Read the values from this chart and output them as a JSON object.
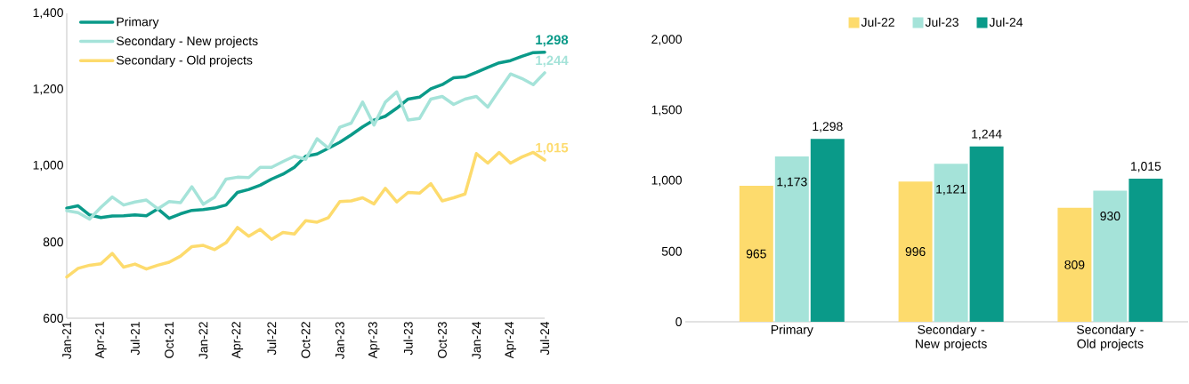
{
  "chart_data": [
    {
      "type": "line",
      "x": [
        "2021-01",
        "2021-02",
        "2021-03",
        "2021-04",
        "2021-05",
        "2021-06",
        "2021-07",
        "2021-08",
        "2021-09",
        "2021-10",
        "2021-11",
        "2021-12",
        "2022-01",
        "2022-02",
        "2022-03",
        "2022-04",
        "2022-05",
        "2022-06",
        "2022-07",
        "2022-08",
        "2022-09",
        "2022-10",
        "2022-11",
        "2022-12",
        "2023-01",
        "2023-02",
        "2023-03",
        "2023-04",
        "2023-05",
        "2023-06",
        "2023-07",
        "2023-08",
        "2023-09",
        "2023-10",
        "2023-11",
        "2023-12",
        "2024-01",
        "2024-02",
        "2024-03",
        "2024-04",
        "2024-05",
        "2024-06",
        "2024-07"
      ],
      "series": [
        {
          "name": "Primary",
          "color": "#0a9a89",
          "values": [
            889,
            895,
            871,
            864,
            868,
            869,
            871,
            869,
            887,
            862,
            874,
            883,
            885,
            889,
            897,
            930,
            938,
            949,
            965,
            978,
            996,
            1025,
            1031,
            1046,
            1062,
            1081,
            1102,
            1120,
            1130,
            1151,
            1175,
            1180,
            1202,
            1213,
            1231,
            1233,
            1245,
            1258,
            1270,
            1276,
            1287,
            1297,
            1298
          ]
        },
        {
          "name": "Secondary - New projects",
          "color": "#a5e3d9",
          "values": [
            882,
            877,
            860,
            891,
            918,
            897,
            905,
            910,
            887,
            906,
            903,
            945,
            899,
            918,
            965,
            970,
            969,
            996,
            996,
            1011,
            1025,
            1017,
            1071,
            1046,
            1101,
            1112,
            1167,
            1107,
            1167,
            1194,
            1120,
            1124,
            1175,
            1182,
            1161,
            1175,
            1182,
            1154,
            1198,
            1241,
            1229,
            1213,
            1244
          ]
        },
        {
          "name": "Secondary - Old projects",
          "color": "#fddb6d",
          "values": [
            708,
            731,
            739,
            743,
            770,
            734,
            742,
            729,
            739,
            747,
            763,
            788,
            791,
            780,
            798,
            838,
            815,
            833,
            807,
            825,
            821,
            856,
            852,
            864,
            906,
            908,
            916,
            900,
            941,
            905,
            930,
            928,
            953,
            908,
            916,
            926,
            1032,
            1007,
            1035,
            1007,
            1023,
            1035,
            1015
          ]
        }
      ],
      "xlim": [
        "2021-01",
        "2024-07"
      ],
      "xticks": [
        {
          "value": "2021-01",
          "label": "Jan-21"
        },
        {
          "value": "2021-04",
          "label": "Apr-21"
        },
        {
          "value": "2021-07",
          "label": "Jul-21"
        },
        {
          "value": "2021-10",
          "label": "Oct-21"
        },
        {
          "value": "2022-01",
          "label": "Jan-22"
        },
        {
          "value": "2022-04",
          "label": "Apr-22"
        },
        {
          "value": "2022-07",
          "label": "Jul-22"
        },
        {
          "value": "2022-10",
          "label": "Oct-22"
        },
        {
          "value": "2023-01",
          "label": "Jan-23"
        },
        {
          "value": "2023-04",
          "label": "Apr-23"
        },
        {
          "value": "2023-07",
          "label": "Jul-23"
        },
        {
          "value": "2023-10",
          "label": "Oct-23"
        },
        {
          "value": "2024-01",
          "label": "Jan-24"
        },
        {
          "value": "2024-04",
          "label": "Apr-24"
        },
        {
          "value": "2024-07",
          "label": "Jul-24"
        }
      ],
      "ylim": [
        600,
        1400
      ],
      "yticks": [
        600,
        800,
        {
          "value": 1000,
          "label": "1,000"
        },
        {
          "value": 1200,
          "label": "1,200"
        },
        {
          "value": 1400,
          "label": "1,400"
        }
      ],
      "legend": "top left",
      "annotations": [
        {
          "text": "1,298",
          "x": "2024-07",
          "y": 1298
        },
        {
          "text": "1,244",
          "x": "2024-07",
          "y": 1244
        },
        {
          "text": "1,015",
          "x": "2024-07",
          "y": 1015
        }
      ]
    },
    {
      "type": "bar",
      "categories": [
        "Primary",
        "Secondary - New projects",
        "Secondary - Old projects"
      ],
      "series": [
        {
          "name": "Jul-22",
          "color": "#fddb6d",
          "values": [
            965,
            996,
            809
          ],
          "value_labels": [
            "965",
            "996",
            "809"
          ]
        },
        {
          "name": "Jul-23",
          "color": "#a5e3d9",
          "values": [
            1173,
            1121,
            930
          ],
          "value_labels": [
            "1,173",
            "1,121",
            "930"
          ]
        },
        {
          "name": "Jul-24",
          "color": "#0a9a89",
          "values": [
            1298,
            1244,
            1015
          ],
          "value_labels": [
            "1,298",
            "1,244",
            "1,015"
          ]
        }
      ],
      "ylim": [
        0,
        2000
      ],
      "yticks": [
        0,
        500,
        {
          "value": 1000,
          "label": "1,000"
        },
        {
          "value": 1500,
          "label": "1,500"
        },
        {
          "value": 2000,
          "label": "2,000"
        }
      ],
      "legend": "top"
    }
  ]
}
